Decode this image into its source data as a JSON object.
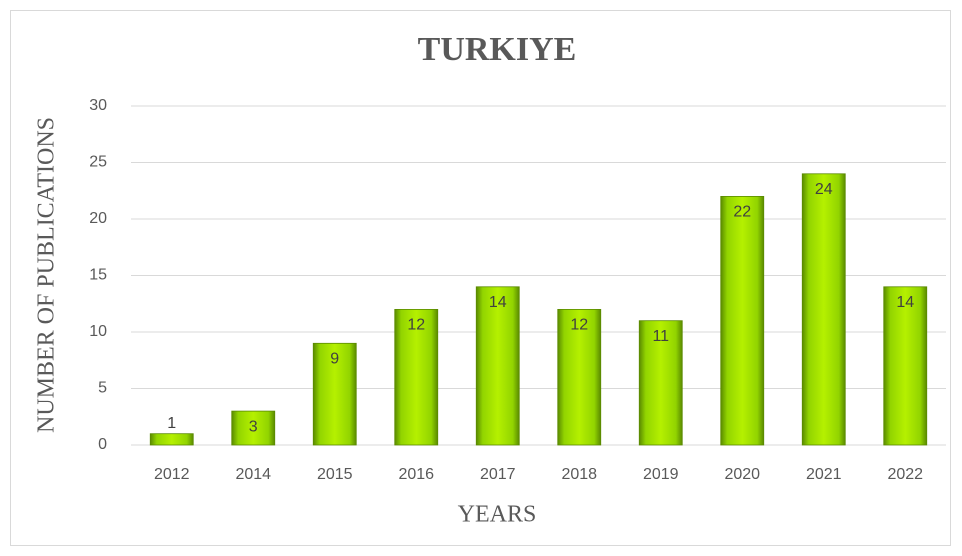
{
  "chart_data": {
    "type": "bar",
    "title": "TURKIYE",
    "x_label": "YEARS",
    "y_label": "NUMBER OF PUBLICATIONS",
    "categories": [
      "2012",
      "2014",
      "2015",
      "2016",
      "2017",
      "2018",
      "2019",
      "2020",
      "2021",
      "2022"
    ],
    "values": [
      1,
      3,
      9,
      12,
      14,
      12,
      11,
      22,
      24,
      14
    ],
    "color": "#92d400",
    "ylim": [
      0,
      30
    ],
    "yticks": [
      0,
      5,
      10,
      15,
      20,
      25,
      30
    ],
    "grid": true
  }
}
